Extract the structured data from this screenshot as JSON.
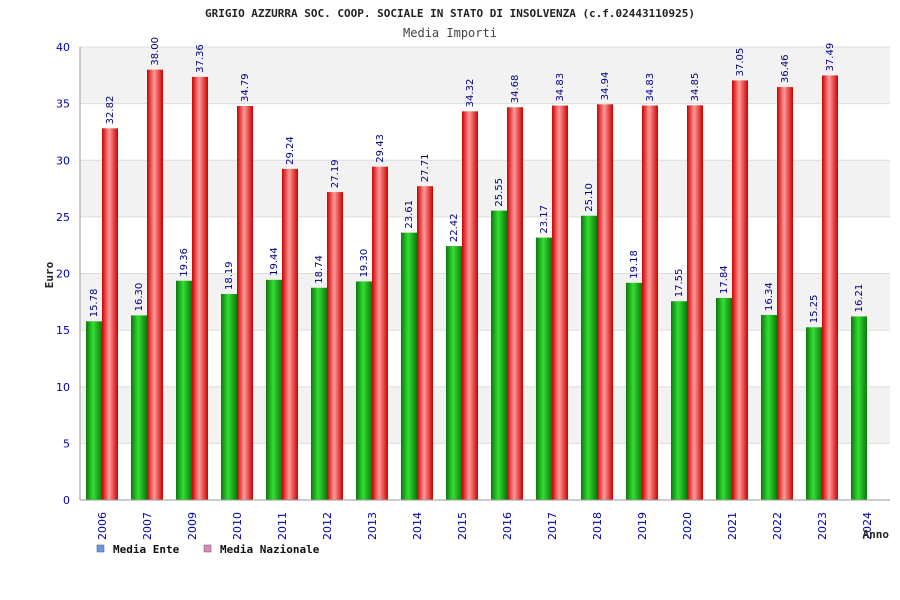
{
  "chart_data": {
    "type": "bar",
    "title": "GRIGIO AZZURRA SOC. COOP. SOCIALE IN STATO DI INSOLVENZA (c.f.02443110925)",
    "subtitle": "Media Importi",
    "xlabel": "Anno",
    "ylabel": "Euro",
    "ylim": [
      0,
      40
    ],
    "yticks": [
      0,
      5,
      10,
      15,
      20,
      25,
      30,
      35,
      40
    ],
    "grid": true,
    "legend_position": "bottom-left",
    "categories": [
      "2006",
      "2007",
      "2009",
      "2010",
      "2011",
      "2012",
      "2013",
      "2014",
      "2015",
      "2016",
      "2017",
      "2018",
      "2019",
      "2020",
      "2021",
      "2022",
      "2023",
      "2024"
    ],
    "series": [
      {
        "name": "Media Ente",
        "legend_color": "#6699ee",
        "bar_color": "#11aa11",
        "values": [
          15.78,
          16.3,
          19.36,
          18.19,
          19.44,
          18.74,
          19.3,
          23.61,
          22.42,
          25.55,
          23.17,
          25.1,
          19.18,
          17.55,
          17.84,
          16.34,
          15.25,
          16.21
        ],
        "labels": [
          "15.78",
          "16.30",
          "19.36",
          "18.19",
          "19.44",
          "18.74",
          "19.30",
          "23.61",
          "22.42",
          "25.55",
          "23.17",
          "25.10",
          "19.18",
          "17.55",
          "17.84",
          "16.34",
          "15.25",
          "16.21"
        ]
      },
      {
        "name": "Media Nazionale",
        "legend_color": "#dd88bb",
        "bar_color": "#ee2222",
        "values": [
          32.82,
          38.0,
          37.36,
          34.79,
          29.24,
          27.19,
          29.43,
          27.71,
          34.32,
          34.68,
          34.83,
          34.94,
          34.83,
          34.85,
          37.05,
          36.46,
          37.49,
          null
        ],
        "labels": [
          "32.82",
          "38.00",
          "37.36",
          "34.79",
          "29.24",
          "27.19",
          "29.43",
          "27.71",
          "34.32",
          "34.68",
          "34.83",
          "34.94",
          "34.83",
          "34.85",
          "37.05",
          "36.46",
          "37.49",
          ""
        ]
      }
    ]
  }
}
